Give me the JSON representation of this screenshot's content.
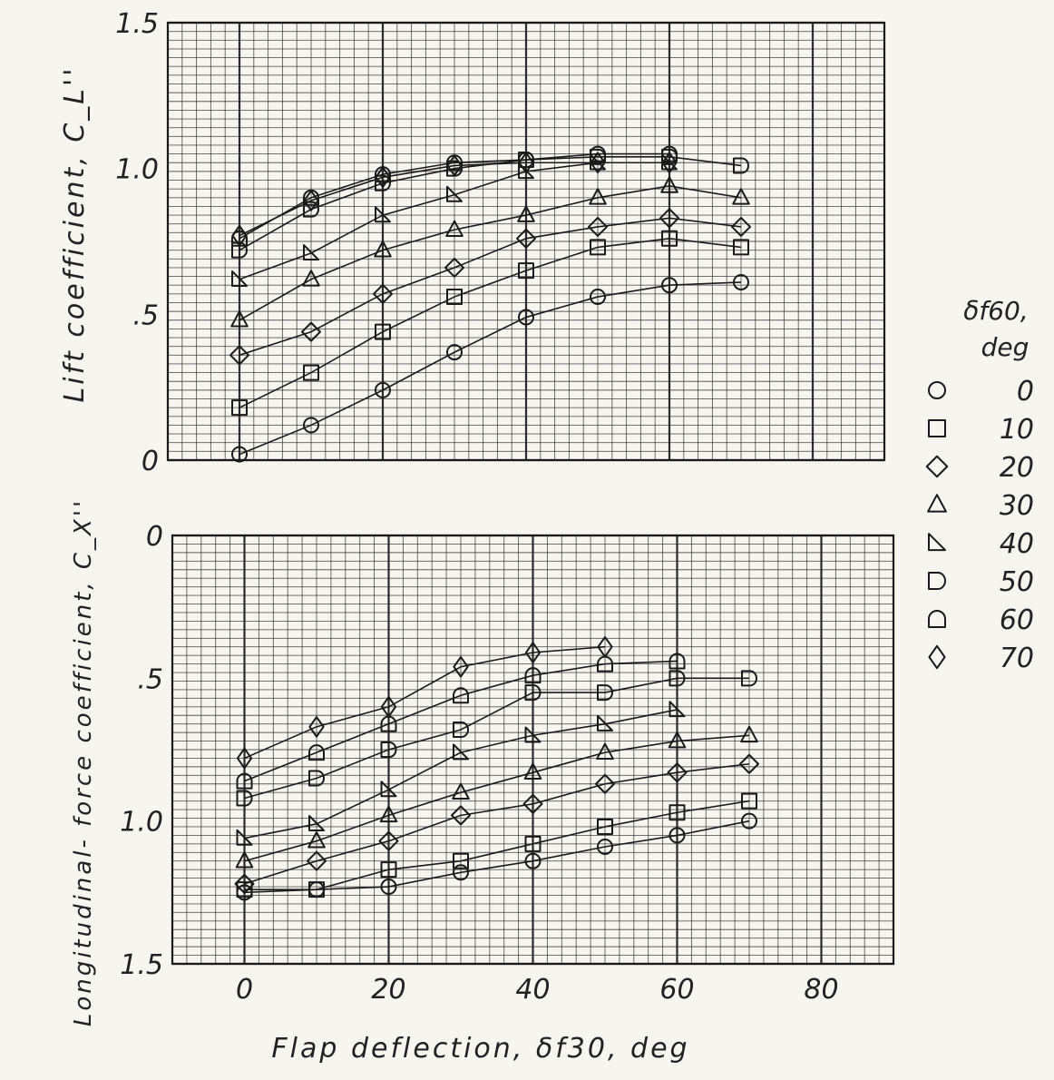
{
  "chart_data": [
    {
      "type": "line",
      "ylabel": "Lift coefficient, C_L''",
      "xlim": [
        -10,
        90
      ],
      "ylim": [
        0,
        1.5
      ],
      "yticks": [
        "0",
        ".5",
        "1.0",
        "1.5"
      ],
      "grid": true,
      "series": [
        {
          "name": "0",
          "x": [
            0,
            10,
            20,
            30,
            40,
            50,
            60,
            70
          ],
          "y": [
            0.02,
            0.12,
            0.24,
            0.37,
            0.49,
            0.56,
            0.6,
            0.61
          ]
        },
        {
          "name": "10",
          "x": [
            0,
            10,
            20,
            30,
            40,
            50,
            60,
            70
          ],
          "y": [
            0.18,
            0.3,
            0.44,
            0.56,
            0.65,
            0.73,
            0.76,
            0.73
          ]
        },
        {
          "name": "20",
          "x": [
            0,
            10,
            20,
            30,
            40,
            50,
            60,
            70
          ],
          "y": [
            0.36,
            0.44,
            0.57,
            0.66,
            0.76,
            0.8,
            0.83,
            0.8
          ]
        },
        {
          "name": "30",
          "x": [
            0,
            10,
            20,
            30,
            40,
            50,
            60,
            70
          ],
          "y": [
            0.48,
            0.62,
            0.72,
            0.79,
            0.84,
            0.9,
            0.94,
            0.9
          ]
        },
        {
          "name": "40",
          "x": [
            0,
            10,
            20,
            30,
            40,
            50,
            60
          ],
          "y": [
            0.62,
            0.71,
            0.84,
            0.91,
            0.99,
            1.02,
            1.02
          ]
        },
        {
          "name": "50",
          "x": [
            0,
            10,
            20,
            30,
            40,
            50,
            60,
            70
          ],
          "y": [
            0.72,
            0.86,
            0.95,
            1.0,
            1.03,
            1.04,
            1.04,
            1.01
          ]
        },
        {
          "name": "60",
          "x": [
            0,
            10,
            20,
            30,
            40,
            50,
            60
          ],
          "y": [
            0.76,
            0.9,
            0.98,
            1.02,
            1.03,
            1.05,
            1.05
          ]
        },
        {
          "name": "70",
          "x": [
            0,
            10,
            20,
            30,
            40,
            50,
            60
          ],
          "y": [
            0.77,
            0.89,
            0.97,
            1.01,
            1.02,
            1.02,
            1.02
          ]
        }
      ]
    },
    {
      "type": "line",
      "xlabel": "Flap deflection, δf30, deg",
      "ylabel": "Longitudinal- force coefficient, C_X''",
      "xlim": [
        -10,
        90
      ],
      "ylim": [
        0,
        1.5
      ],
      "y_inverted": true,
      "xticks": [
        "0",
        "20",
        "40",
        "60",
        "80"
      ],
      "yticks": [
        "0",
        ".5",
        "1.0",
        "1.5"
      ],
      "grid": true,
      "series": [
        {
          "name": "0",
          "x": [
            0,
            10,
            20,
            30,
            40,
            50,
            60,
            70
          ],
          "y": [
            1.25,
            1.24,
            1.23,
            1.18,
            1.14,
            1.09,
            1.05,
            1.0
          ]
        },
        {
          "name": "10",
          "x": [
            0,
            10,
            20,
            30,
            40,
            50,
            60,
            70
          ],
          "y": [
            1.24,
            1.24,
            1.17,
            1.14,
            1.08,
            1.02,
            0.97,
            0.93
          ]
        },
        {
          "name": "20",
          "x": [
            0,
            10,
            20,
            30,
            40,
            50,
            60,
            70
          ],
          "y": [
            1.22,
            1.14,
            1.07,
            0.98,
            0.94,
            0.87,
            0.83,
            0.8
          ]
        },
        {
          "name": "30",
          "x": [
            0,
            10,
            20,
            30,
            40,
            50,
            60,
            70
          ],
          "y": [
            1.14,
            1.07,
            0.98,
            0.9,
            0.83,
            0.76,
            0.72,
            0.7
          ]
        },
        {
          "name": "40",
          "x": [
            0,
            10,
            20,
            30,
            40,
            50,
            60
          ],
          "y": [
            1.06,
            1.01,
            0.89,
            0.76,
            0.7,
            0.66,
            0.61
          ]
        },
        {
          "name": "50",
          "x": [
            0,
            10,
            20,
            30,
            40,
            50,
            60,
            70
          ],
          "y": [
            0.92,
            0.85,
            0.75,
            0.68,
            0.55,
            0.55,
            0.5,
            0.5
          ]
        },
        {
          "name": "60",
          "x": [
            0,
            10,
            20,
            30,
            40,
            50,
            60
          ],
          "y": [
            0.86,
            0.76,
            0.66,
            0.56,
            0.49,
            0.45,
            0.44
          ]
        },
        {
          "name": "70",
          "x": [
            0,
            10,
            20,
            30,
            40,
            50
          ],
          "y": [
            0.78,
            0.67,
            0.6,
            0.46,
            0.41,
            0.39
          ]
        }
      ]
    }
  ],
  "legend": {
    "title_line1": "δf60,",
    "title_line2": "deg",
    "items": [
      {
        "label": "0",
        "marker": "circle"
      },
      {
        "label": "10",
        "marker": "square"
      },
      {
        "label": "20",
        "marker": "diamond"
      },
      {
        "label": "30",
        "marker": "triangle"
      },
      {
        "label": "40",
        "marker": "right-triangle"
      },
      {
        "label": "50",
        "marker": "d-shape"
      },
      {
        "label": "60",
        "marker": "dome"
      },
      {
        "label": "70",
        "marker": "tall-diamond"
      }
    ]
  },
  "colors": {
    "ink": "#1a1a1a",
    "grid": "#2a2a2a",
    "paper": "#f6f5f0"
  }
}
